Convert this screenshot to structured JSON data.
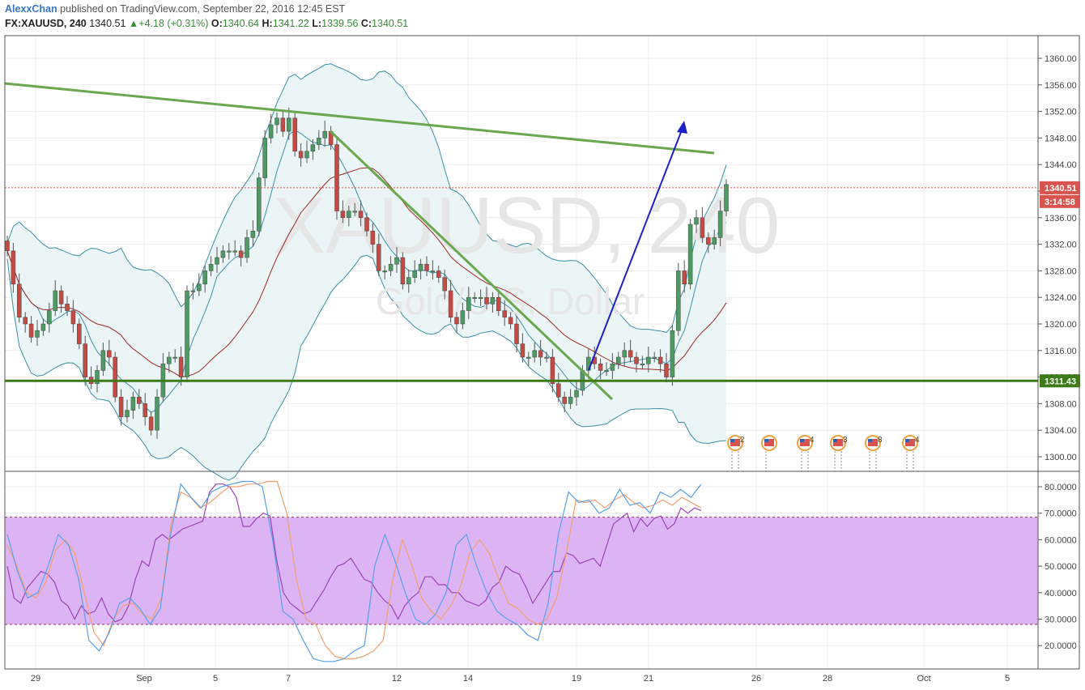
{
  "header": {
    "author": "AlexxChan",
    "published_text": "published on TradingView.com, September 22, 2016 12:45 EST",
    "symbol": "FX:XAUUSD, 240",
    "last": "1340.51",
    "change": "+4.18 (+0.31%)",
    "o_label": "O:",
    "o_value": "1340.64",
    "h_label": "H:",
    "h_value": "1341.22",
    "l_label": "L:",
    "l_value": "1339.56",
    "c_label": "C:",
    "c_value": "1340.51"
  },
  "watermark": {
    "symbol": "XAUUSD, 240",
    "description": "Gold/U.S. Dollar"
  },
  "price_labels": {
    "last_price": "1340.51",
    "countdown": "3:14:58",
    "support": "1311.43"
  },
  "event_counts": [
    "2",
    "4",
    "3",
    "8",
    "4"
  ],
  "colors": {
    "up": "#4e9a64",
    "down": "#c64a44",
    "trendline": "#6aa84f",
    "support": "#3c7a1a",
    "arrow": "#1f1fc8",
    "band": "#3d8fa3",
    "band_fill": "#ebf5f5",
    "ma": "#9b2a2a",
    "osc_zone": "#dcb4f4",
    "stoch_k": "#5aa0e8",
    "stoch_d": "#f0a070",
    "rsi": "#9a44b4"
  },
  "chart_data": [
    {
      "type": "candlestick",
      "title": "XAUUSD, 240",
      "x_tick_labels": [
        "29",
        "Sep",
        "5",
        "7",
        "12",
        "14",
        "19",
        "21",
        "26",
        "28",
        "Oct",
        "5"
      ],
      "y_tick_labels": [
        "1360.00",
        "1356.00",
        "1352.00",
        "1348.00",
        "1344.00",
        "1340.00",
        "1336.00",
        "1332.00",
        "1328.00",
        "1324.00",
        "1320.00",
        "1316.00",
        "1312.00",
        "1308.00",
        "1304.00",
        "1300.00"
      ],
      "ylim": [
        1299,
        1362
      ],
      "grid": true,
      "closes": [
        1331,
        1326,
        1321,
        1320,
        1318,
        1319,
        1320,
        1322,
        1325,
        1323,
        1322,
        1320,
        1317,
        1312,
        1311,
        1313,
        1316,
        1315,
        1309,
        1306,
        1307,
        1309,
        1308,
        1306,
        1304,
        1309,
        1314,
        1315,
        1315,
        1312,
        1325,
        1325,
        1326,
        1328,
        1329,
        1330,
        1331,
        1331,
        1331,
        1330,
        1333,
        1334,
        1342,
        1348,
        1350,
        1351,
        1349,
        1351,
        1346,
        1345,
        1346,
        1347,
        1348,
        1349,
        1347,
        1337,
        1336,
        1337,
        1337,
        1336,
        1334,
        1332,
        1328,
        1328,
        1329,
        1330,
        1326,
        1327,
        1328,
        1329,
        1328,
        1328,
        1327,
        1325,
        1321,
        1320,
        1322,
        1324,
        1324,
        1324,
        1323,
        1324,
        1322,
        1321,
        1320,
        1317,
        1315,
        1315,
        1316,
        1315,
        1315,
        1311,
        1309,
        1308,
        1309,
        1310,
        1313,
        1315,
        1314,
        1313,
        1313,
        1314,
        1315,
        1316,
        1315,
        1314,
        1314,
        1315,
        1315,
        1314,
        1312,
        1319,
        1328,
        1326,
        1335,
        1336,
        1333,
        1332,
        1333,
        1337,
        1341
      ],
      "legend_position": "none"
    },
    {
      "type": "line",
      "title": "",
      "y_tick_labels": [
        "80.0000",
        "70.0000",
        "60.0000",
        "50.0000",
        "40.0000",
        "30.0000",
        "20.0000"
      ],
      "ylim": [
        11,
        84
      ],
      "zone": [
        28,
        68.5
      ],
      "series": [
        {
          "values": [
            50,
            38,
            36,
            42,
            45,
            48,
            47,
            44,
            37,
            35,
            30,
            35,
            32,
            33,
            38,
            32,
            29,
            30,
            35,
            45,
            52,
            50,
            60,
            62,
            60,
            62,
            64,
            65,
            66,
            67,
            78,
            81,
            81,
            80,
            76,
            65,
            65,
            68,
            70,
            69,
            52,
            40,
            36,
            34,
            32,
            33,
            37,
            41,
            46,
            50,
            51,
            53,
            49,
            45,
            44,
            40,
            37,
            35,
            30,
            35,
            38,
            40,
            46,
            46,
            43,
            43,
            40,
            40,
            37,
            36,
            35,
            37,
            42,
            44,
            50,
            48,
            47,
            42,
            36,
            40,
            44,
            48,
            48,
            55,
            54,
            51,
            52,
            53,
            50,
            58,
            66,
            68,
            70,
            63,
            68,
            65,
            68,
            69,
            64,
            66,
            72,
            70,
            72,
            71
          ]
        },
        {
          "values": [
            58,
            50,
            40,
            38,
            44,
            56,
            60,
            55,
            40,
            25,
            20,
            30,
            35,
            36,
            32,
            30,
            38,
            66,
            78,
            76,
            72,
            74,
            77,
            80,
            80,
            81,
            81,
            82,
            82,
            70,
            45,
            30,
            28,
            20,
            16,
            15,
            15,
            16,
            18,
            22,
            45,
            60,
            50,
            38,
            33,
            30,
            35,
            42,
            55,
            60,
            55,
            45,
            36,
            34,
            30,
            28,
            30,
            38,
            55,
            75,
            74,
            75,
            72,
            75,
            77,
            74,
            72,
            73,
            75,
            73,
            76,
            74,
            72
          ]
        },
        {
          "values": [
            62,
            48,
            38,
            40,
            50,
            62,
            58,
            45,
            22,
            18,
            25,
            36,
            38,
            34,
            28,
            34,
            62,
            81,
            76,
            72,
            78,
            80,
            81,
            82,
            82,
            80,
            60,
            33,
            30,
            22,
            15,
            14,
            14,
            15,
            18,
            20,
            50,
            62,
            52,
            40,
            30,
            28,
            32,
            40,
            58,
            62,
            50,
            40,
            33,
            30,
            28,
            24,
            22,
            36,
            62,
            78,
            74,
            75,
            70,
            72,
            79,
            73,
            74,
            70,
            78,
            76,
            79,
            76,
            81
          ]
        }
      ],
      "legend_position": "none"
    }
  ]
}
